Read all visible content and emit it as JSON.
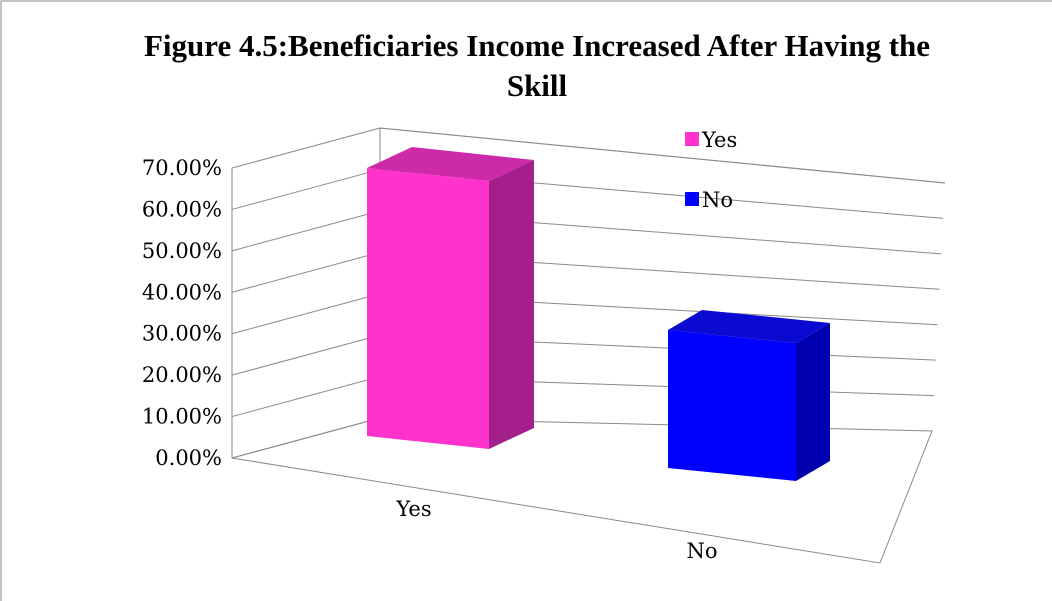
{
  "chart_data": {
    "type": "bar",
    "title": "Figure 4.5:Beneficiaries Income Increased After Having the Skill",
    "title_lines": [
      "Figure 4.5:Beneficiaries Income Increased After Having the",
      "Skill"
    ],
    "categories": [
      "Yes",
      "No"
    ],
    "values": [
      0.66,
      0.34
    ],
    "y_ticks": [
      "0.00%",
      "10.00%",
      "20.00%",
      "30.00%",
      "40.00%",
      "50.00%",
      "60.00%",
      "70.00%"
    ],
    "ylim": [
      0,
      0.7
    ],
    "xlabel": "",
    "ylabel": "",
    "grid": true,
    "legend": {
      "position": "top-right",
      "entries": [
        {
          "label": "Yes",
          "color": "#ff33cc"
        },
        {
          "label": "No",
          "color": "#0000ff"
        }
      ]
    },
    "colors": {
      "Yes": {
        "front": "#ff33cc",
        "side": "#a3208c",
        "top": "#cc2aa6"
      },
      "No": {
        "front": "#0000ff",
        "side": "#0000b0",
        "top": "#0a0ad0"
      }
    }
  }
}
